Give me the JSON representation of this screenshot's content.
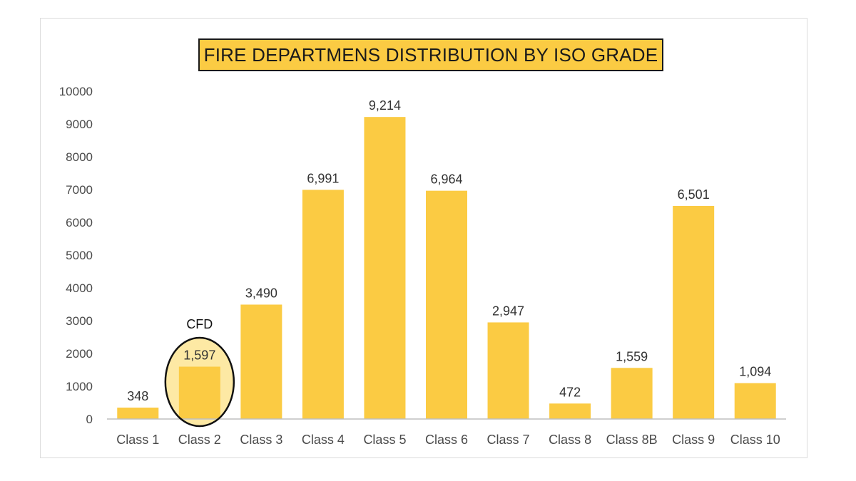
{
  "chart_data": {
    "type": "bar",
    "title": "FIRE DEPARTMENS DISTRIBUTION BY  ISO GRADE",
    "categories": [
      "Class 1",
      "Class 2",
      "Class 3",
      "Class 4",
      "Class 5",
      "Class 6",
      "Class 7",
      "Class 8",
      "Class 8B",
      "Class 9",
      "Class 10"
    ],
    "values": [
      348,
      1597,
      3490,
      6991,
      9214,
      6964,
      2947,
      472,
      1559,
      6501,
      1094
    ],
    "data_labels": [
      "348",
      "1,597",
      "3,490",
      "6,991",
      "9,214",
      "6,964",
      "2,947",
      "472",
      "1,559",
      "6,501",
      "1,094"
    ],
    "xlabel": "",
    "ylabel": "",
    "ylim": [
      0,
      10000
    ],
    "yticks": [
      0,
      1000,
      2000,
      3000,
      4000,
      5000,
      6000,
      7000,
      8000,
      9000,
      10000
    ],
    "grid": false,
    "legend": "none",
    "bar_color": "#fbcb43",
    "annotation": {
      "category": "Class 2",
      "text": "CFD",
      "highlight_color": "#fde9a4",
      "outline_color": "#111111"
    }
  }
}
